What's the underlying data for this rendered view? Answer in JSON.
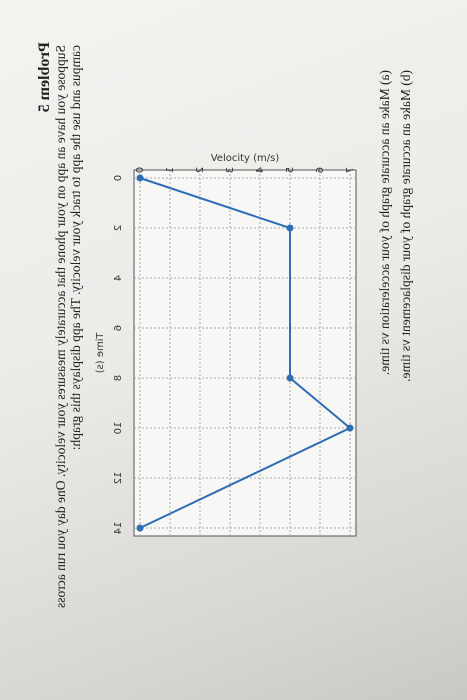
{
  "problem": {
    "title": "Problem 5",
    "text": "Suppose you have an app on your phone that accurately measures your velocity. One day you run across campus and use the app to track your velocity. The app displays this graph:"
  },
  "questions": [
    "(a) Make an accurate graph of your acceleration vs time.",
    "(b) Make an accurate graph of your displacement vs time."
  ],
  "chart_data": {
    "type": "line",
    "x_label": "Time (s)",
    "y_label": "Velocity (m/s)",
    "x": [
      0,
      2,
      8,
      10,
      14
    ],
    "values": [
      0,
      5,
      5,
      7,
      0
    ],
    "color": "#2f6db5",
    "xlim": [
      0,
      14
    ],
    "xticks": [
      0,
      2,
      4,
      6,
      8,
      10,
      12,
      14
    ],
    "ylim": [
      0,
      7
    ],
    "yticks": [
      0,
      1,
      2,
      3,
      4,
      5,
      6,
      7
    ],
    "grid": true
  }
}
